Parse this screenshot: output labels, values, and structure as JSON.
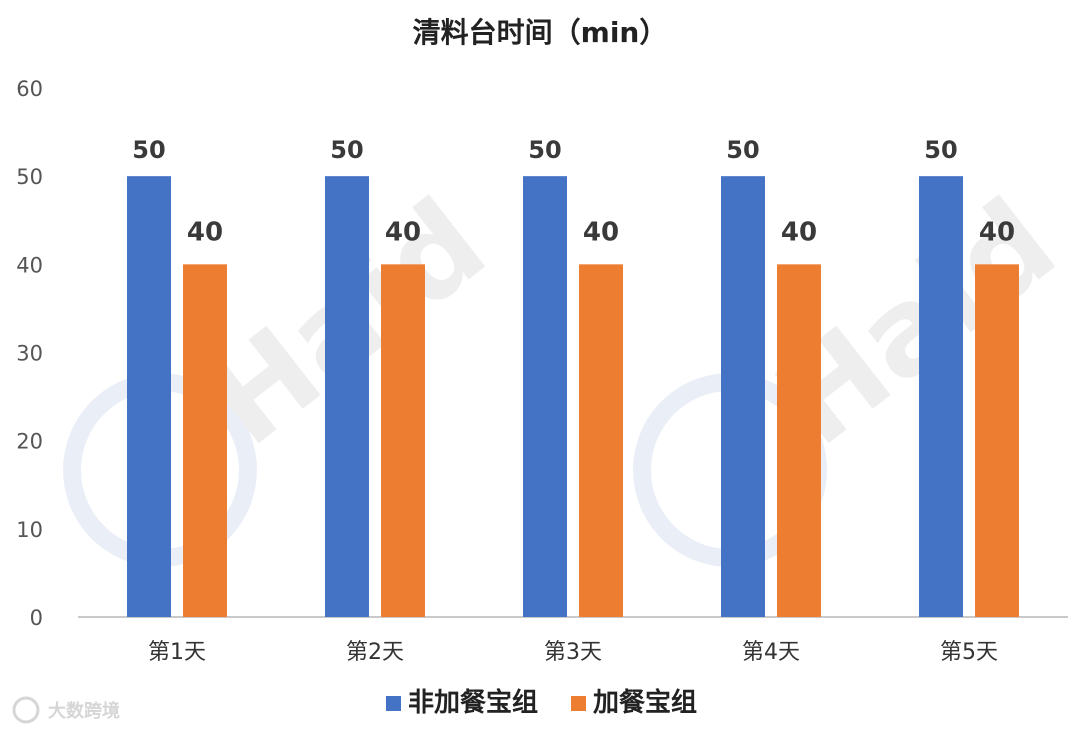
{
  "chart_data": {
    "type": "bar",
    "title": "清料台时间（min）",
    "categories": [
      "第1天",
      "第2天",
      "第3天",
      "第4天",
      "第5天"
    ],
    "series": [
      {
        "name": "非加餐宝组",
        "color": "#4472C4",
        "values": [
          50,
          50,
          50,
          50,
          50
        ]
      },
      {
        "name": "加餐宝组",
        "color": "#ED7D31",
        "values": [
          40,
          40,
          40,
          40,
          40
        ]
      }
    ],
    "ylim": [
      0,
      60
    ],
    "yticks": [
      0,
      10,
      20,
      30,
      40,
      50,
      60
    ],
    "grid": false,
    "legend_position": "bottom",
    "data_labels": true
  },
  "watermark": {
    "logo_text": "Haid",
    "corner_text": "大数跨境"
  }
}
